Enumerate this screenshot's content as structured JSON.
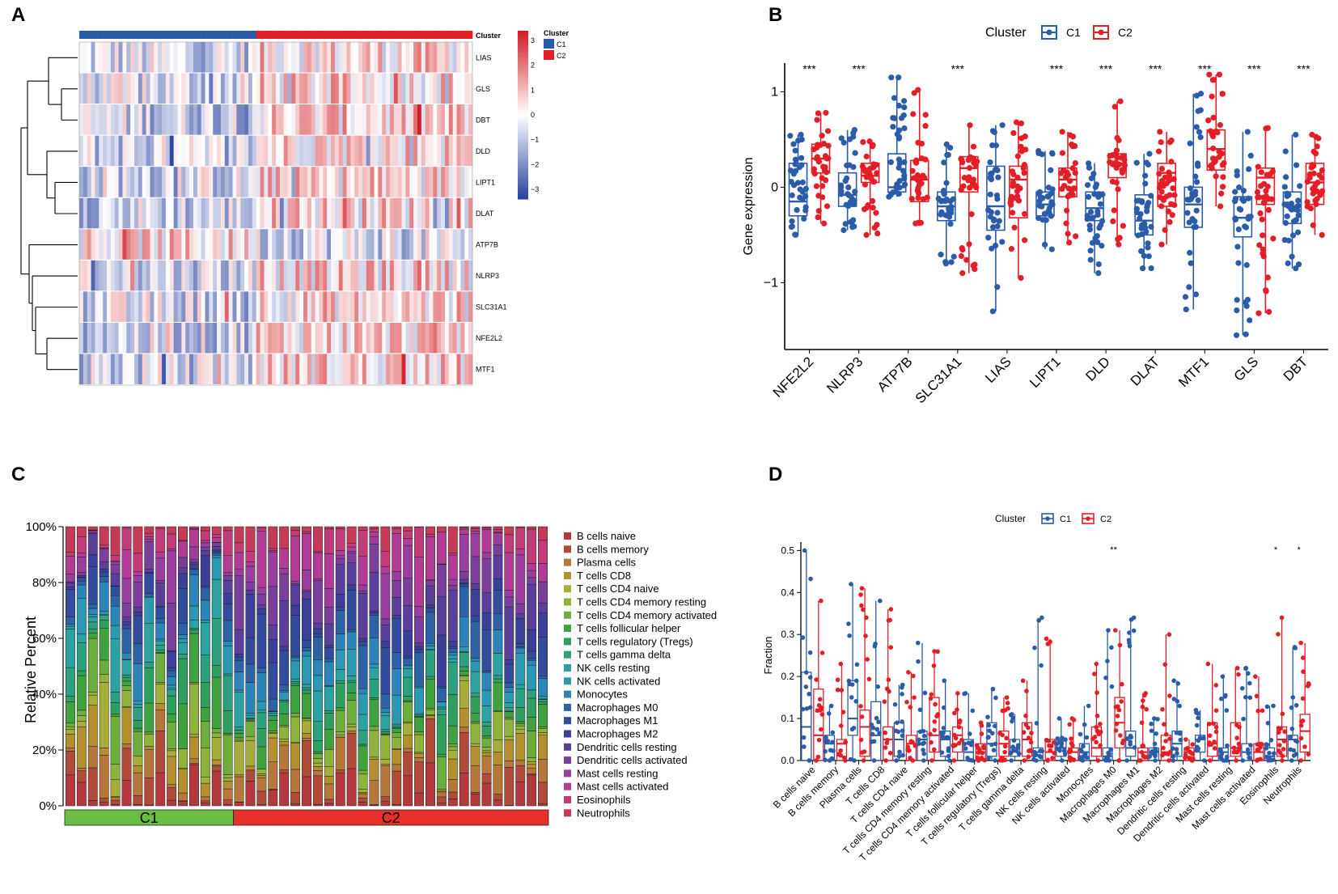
{
  "panel_labels": [
    "A",
    "B",
    "C",
    "D"
  ],
  "colors": {
    "c1": "#2a5caa",
    "c2": "#e41e26",
    "c1_bar": "#6bbe44",
    "c2_bar": "#e8302a"
  },
  "chart_data": [
    {
      "panel": "A",
      "type": "heatmap",
      "annotation_label": "Cluster",
      "legend_title": "Cluster",
      "legend_entries": [
        "C1",
        "C2"
      ],
      "color_scale_ticks": [
        "3",
        "2",
        "1",
        "0",
        "−1",
        "−2",
        "−3"
      ],
      "value_range": [
        -3,
        3
      ],
      "rows": [
        "LIAS",
        "GLS",
        "DBT",
        "DLD",
        "LIPT1",
        "DLAT",
        "ATP7B",
        "NLRP3",
        "SLC31A1",
        "NFE2L2",
        "MTF1"
      ],
      "n_columns_c1": 45,
      "n_columns_c2": 55,
      "row_mean_c1": [
        -0.5,
        -0.5,
        -0.6,
        -0.6,
        -0.5,
        -0.6,
        0.4,
        -0.5,
        -0.5,
        -0.6,
        -0.6
      ],
      "row_mean_c2": [
        0.45,
        0.45,
        0.55,
        0.55,
        0.45,
        0.5,
        -0.4,
        0.45,
        0.45,
        0.55,
        0.5
      ]
    },
    {
      "panel": "B",
      "type": "box",
      "legend_title": "Cluster",
      "legend_entries": [
        "C1",
        "C2"
      ],
      "ylabel": "Gene expression",
      "ylim": [
        -1.7,
        1.3
      ],
      "yticks": [
        "1",
        "0",
        "−1"
      ],
      "ytick_values": [
        1,
        0,
        -1
      ],
      "categories": [
        "NFE2L2",
        "NLRP3",
        "ATP7B",
        "SLC31A1",
        "LIAS",
        "LIPT1",
        "DLD",
        "DLAT",
        "MTF1",
        "GLS",
        "DBT"
      ],
      "significance": [
        "***",
        "***",
        "",
        "***",
        "",
        "***",
        "***",
        "***",
        "***",
        "***",
        "***"
      ],
      "series": [
        {
          "name": "C1",
          "q1": [
            -0.3,
            -0.2,
            -0.05,
            -0.35,
            -0.45,
            -0.3,
            -0.35,
            -0.5,
            -0.42,
            -0.52,
            -0.38
          ],
          "median": [
            -0.15,
            -0.08,
            0.0,
            -0.2,
            -0.2,
            -0.18,
            -0.22,
            -0.35,
            -0.18,
            -0.32,
            -0.2
          ],
          "q3": [
            0.25,
            0.15,
            0.35,
            -0.05,
            0.22,
            -0.05,
            -0.05,
            -0.08,
            0.0,
            -0.1,
            -0.05
          ],
          "min": [
            -0.5,
            -0.45,
            -0.1,
            -0.8,
            -1.3,
            -0.65,
            -0.9,
            -0.85,
            -1.28,
            -1.55,
            -0.85
          ],
          "max": [
            0.55,
            0.6,
            1.15,
            0.45,
            0.65,
            0.38,
            0.25,
            0.35,
            0.98,
            0.58,
            0.55
          ]
        },
        {
          "name": "C2",
          "q1": [
            0.15,
            0.05,
            -0.15,
            -0.05,
            -0.32,
            -0.1,
            0.1,
            -0.2,
            0.18,
            -0.18,
            -0.18
          ],
          "median": [
            0.3,
            0.12,
            0.08,
            0.2,
            0.08,
            0.08,
            0.25,
            0.15,
            0.4,
            0.1,
            0.05
          ],
          "q3": [
            0.45,
            0.25,
            0.28,
            0.32,
            0.22,
            0.2,
            0.35,
            0.25,
            0.6,
            0.2,
            0.25
          ],
          "min": [
            -0.38,
            -0.5,
            -0.38,
            -0.9,
            -0.95,
            -0.58,
            -0.6,
            -0.6,
            -0.2,
            -1.32,
            -0.5
          ],
          "max": [
            0.78,
            0.48,
            1.02,
            0.65,
            0.68,
            0.58,
            0.9,
            0.58,
            1.18,
            0.62,
            0.55
          ]
        }
      ]
    },
    {
      "panel": "C",
      "type": "stacked-bar",
      "ylabel": "Relative Percent",
      "yticks": [
        "0%",
        "20%",
        "40%",
        "60%",
        "80%",
        "100%"
      ],
      "ylim": [
        0,
        100
      ],
      "group_labels": [
        "C1",
        "C2"
      ],
      "n_bars_c1": 15,
      "n_bars_c2": 28,
      "legend": [
        {
          "label": "B cells naive",
          "color": "#b5383e"
        },
        {
          "label": "B cells memory",
          "color": "#b04a39"
        },
        {
          "label": "Plasma cells",
          "color": "#b7763a"
        },
        {
          "label": "T cells CD8",
          "color": "#b3902d"
        },
        {
          "label": "T cells CD4 naive",
          "color": "#a4ae38"
        },
        {
          "label": "T cells CD4 memory resting",
          "color": "#8fb23b"
        },
        {
          "label": "T cells CD4 memory activated",
          "color": "#6cad3c"
        },
        {
          "label": "T cells follicular helper",
          "color": "#3fa23e"
        },
        {
          "label": "T cells regulatory (Tregs)",
          "color": "#2f9f5d"
        },
        {
          "label": "T cells gamma delta",
          "color": "#2ca07f"
        },
        {
          "label": "NK cells resting",
          "color": "#2aa3a2"
        },
        {
          "label": "NK cells activated",
          "color": "#2b99b4"
        },
        {
          "label": "Monocytes",
          "color": "#2b85b8"
        },
        {
          "label": "Macrophages M0",
          "color": "#2e62a7"
        },
        {
          "label": "Macrophages M1",
          "color": "#334d9e"
        },
        {
          "label": "Macrophages M2",
          "color": "#3c3f9a"
        },
        {
          "label": "Dendritic cells resting",
          "color": "#5b3f9c"
        },
        {
          "label": "Dendritic cells activated",
          "color": "#7a3f9d"
        },
        {
          "label": "Mast cells resting",
          "color": "#9a3d9e"
        },
        {
          "label": "Mast cells activated",
          "color": "#b23b95"
        },
        {
          "label": "Eosinophils",
          "color": "#c13b78"
        },
        {
          "label": "Neutrophils",
          "color": "#c43a58"
        }
      ]
    },
    {
      "panel": "D",
      "type": "box",
      "legend_title": "Cluster",
      "legend_entries": [
        "C1",
        "C2"
      ],
      "ylabel": "Fraction",
      "ylim": [
        0,
        0.52
      ],
      "yticks": [
        "0.0",
        "0.1",
        "0.2",
        "0.3",
        "0.4",
        "0.5"
      ],
      "ytick_values": [
        0,
        0.1,
        0.2,
        0.3,
        0.4,
        0.5
      ],
      "categories": [
        "B cells naive",
        "B cells memory",
        "Plasma cells",
        "T cells CD8",
        "T cells CD4 naive",
        "T cells CD4 memory resting",
        "T cells CD4 memory activated",
        "T cells follicular helper",
        "T cells regulatory (Tregs)",
        "T cells gamma delta",
        "NK cells resting",
        "NK cells activated",
        "Monocytes",
        "Macrophages M0",
        "Macrophages M1",
        "Macrophages M2",
        "Dendritic cells resting",
        "Dendritic cells activated",
        "Mast cells resting",
        "Mast cells activated",
        "Eosinophils",
        "Neutrophils"
      ],
      "significance": [
        "",
        "",
        "",
        "",
        "",
        "",
        "",
        "",
        "",
        "",
        "",
        "",
        "",
        "**",
        "",
        "",
        "",
        "",
        "",
        "",
        "*",
        "*"
      ],
      "series": [
        {
          "name": "C1",
          "q1": [
            0.0,
            0.0,
            0.06,
            0.0,
            0.01,
            0.0,
            0.01,
            0.0,
            0.01,
            0.01,
            0.0,
            0.01,
            0.0,
            0.0,
            0.01,
            0.0,
            0.01,
            0.02,
            0.0,
            0.0,
            0.0,
            0.0
          ],
          "median": [
            0.08,
            0.04,
            0.1,
            0.06,
            0.05,
            0.05,
            0.05,
            0.02,
            0.04,
            0.03,
            0.02,
            0.03,
            0.02,
            0.01,
            0.03,
            0.02,
            0.04,
            0.05,
            0.02,
            0.02,
            0.01,
            0.05
          ],
          "q3": [
            0.21,
            0.06,
            0.19,
            0.14,
            0.09,
            0.07,
            0.07,
            0.05,
            0.09,
            0.05,
            0.03,
            0.05,
            0.04,
            0.03,
            0.07,
            0.03,
            0.07,
            0.06,
            0.03,
            0.04,
            0.03,
            0.06
          ],
          "min": [
            0.0,
            0.0,
            0.0,
            0.0,
            0.0,
            0.0,
            0.0,
            0.0,
            0.0,
            0.0,
            0.0,
            0.0,
            0.0,
            0.0,
            0.0,
            0.0,
            0.0,
            0.0,
            0.0,
            0.0,
            0.0,
            0.0
          ],
          "max": [
            0.5,
            0.13,
            0.42,
            0.38,
            0.18,
            0.28,
            0.19,
            0.16,
            0.17,
            0.11,
            0.34,
            0.1,
            0.13,
            0.31,
            0.34,
            0.1,
            0.19,
            0.12,
            0.2,
            0.22,
            0.13,
            0.27
          ]
        },
        {
          "name": "C2",
          "q1": [
            0.0,
            0.0,
            0.01,
            0.0,
            0.0,
            0.02,
            0.02,
            0.0,
            0.01,
            0.01,
            0.0,
            0.0,
            0.01,
            0.03,
            0.0,
            0.0,
            0.0,
            0.01,
            0.01,
            0.0,
            0.01,
            0.02
          ],
          "median": [
            0.06,
            0.04,
            0.08,
            0.05,
            0.04,
            0.06,
            0.06,
            0.02,
            0.04,
            0.05,
            0.02,
            0.02,
            0.03,
            0.09,
            0.02,
            0.02,
            0.02,
            0.04,
            0.03,
            0.02,
            0.05,
            0.07
          ],
          "q3": [
            0.17,
            0.05,
            0.12,
            0.08,
            0.06,
            0.15,
            0.08,
            0.04,
            0.07,
            0.09,
            0.05,
            0.03,
            0.08,
            0.15,
            0.03,
            0.06,
            0.03,
            0.09,
            0.09,
            0.04,
            0.08,
            0.11
          ],
          "min": [
            0.0,
            0.0,
            0.0,
            0.0,
            0.0,
            0.0,
            0.0,
            0.0,
            0.0,
            0.0,
            0.0,
            0.0,
            0.0,
            0.0,
            0.0,
            0.0,
            0.0,
            0.0,
            0.0,
            0.0,
            0.0,
            0.0
          ],
          "max": [
            0.38,
            0.23,
            0.41,
            0.36,
            0.21,
            0.26,
            0.16,
            0.09,
            0.15,
            0.19,
            0.29,
            0.1,
            0.23,
            0.31,
            0.16,
            0.3,
            0.05,
            0.23,
            0.22,
            0.2,
            0.34,
            0.28
          ]
        }
      ]
    }
  ]
}
